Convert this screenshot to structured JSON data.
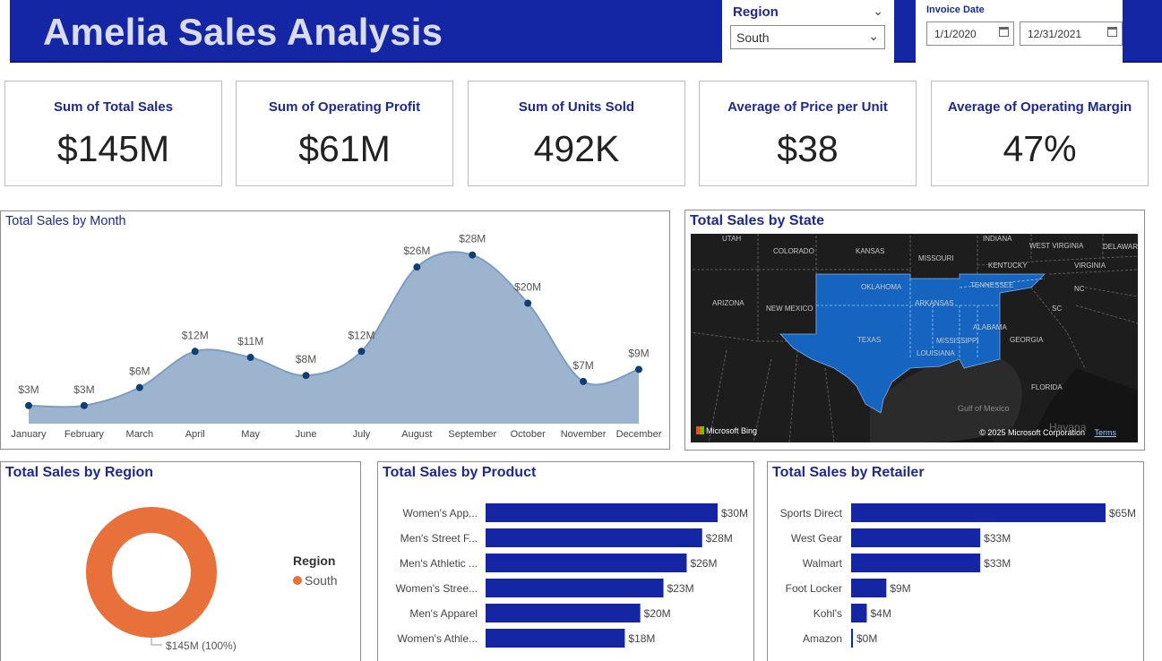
{
  "header": {
    "title": "Amelia Sales Analysis",
    "region_slicer": {
      "label": "Region",
      "value": "South"
    },
    "date_slicer": {
      "label": "Invoice Date",
      "start": "1/1/2020",
      "end": "12/31/2021"
    }
  },
  "kpis": [
    {
      "label": "Sum of Total Sales",
      "value": "$145M"
    },
    {
      "label": "Sum of Operating Profit",
      "value": "$61M"
    },
    {
      "label": "Sum of Units Sold",
      "value": "492K"
    },
    {
      "label": "Average of Price per Unit",
      "value": "$38"
    },
    {
      "label": "Average of Operating Margin",
      "value": "47%"
    }
  ],
  "colors": {
    "header_bg": "#1526a4",
    "title_text": "#d9dcef",
    "accent_text": "#1e2a8a",
    "area_fill": "#9db4cf",
    "area_line": "#7b9cc3",
    "point": "#0f3f74",
    "bar": "#1526a4",
    "donut": "#e8703a",
    "map_bg": "#1a1a1a",
    "map_highlight": "#1565c0"
  },
  "map": {
    "title": "Total Sales by State",
    "labels": [
      "UTAH",
      "COLORADO",
      "KANSAS",
      "MISSOURI",
      "INDIANA",
      "WEST VIRGINIA",
      "DELAWARE",
      "KENTUCKY",
      "VIRGINIA",
      "ARIZONA",
      "NEW MEXICO",
      "OKLAHOMA",
      "ARKANSAS",
      "TENNESSEE",
      "NC",
      "SC",
      "TEXAS",
      "MISSISSIPPI",
      "ALABAMA",
      "GEORGIA",
      "LOUISIANA",
      "FLORIDA",
      "Gulf of Mexico",
      "Havana"
    ],
    "attribution": "Microsoft Bing",
    "copyright": "© 2025 Microsoft Corporation",
    "terms": "Terms"
  },
  "chart_data": [
    {
      "type": "area",
      "title": "Total Sales by Month",
      "categories": [
        "January",
        "February",
        "March",
        "April",
        "May",
        "June",
        "July",
        "August",
        "September",
        "October",
        "November",
        "December"
      ],
      "values": [
        3,
        3,
        6,
        12,
        11,
        8,
        12,
        26,
        28,
        20,
        7,
        9
      ],
      "data_labels": [
        "$3M",
        "$3M",
        "$6M",
        "$12M",
        "$11M",
        "$8M",
        "$12M",
        "$26M",
        "$28M",
        "$20M",
        "$7M",
        "$9M"
      ],
      "unit": "$M",
      "grid": false
    },
    {
      "type": "pie",
      "title": "Total Sales by Region",
      "legend_title": "Region",
      "legend_position": "right",
      "categories": [
        "South"
      ],
      "values": [
        145
      ],
      "data_labels": [
        "$145M (100%)"
      ]
    },
    {
      "type": "bar",
      "title": "Total Sales by Product",
      "orientation": "horizontal",
      "categories": [
        "Women's App...",
        "Men's Street F...",
        "Men's Athletic ...",
        "Women's Stree...",
        "Men's Apparel",
        "Women's Athle..."
      ],
      "values": [
        30,
        28,
        26,
        23,
        20,
        18
      ],
      "data_labels": [
        "$30M",
        "$28M",
        "$26M",
        "$23M",
        "$20M",
        "$18M"
      ],
      "xlim": [
        0,
        30
      ]
    },
    {
      "type": "bar",
      "title": "Total Sales by Retailer",
      "orientation": "horizontal",
      "categories": [
        "Sports Direct",
        "West Gear",
        "Walmart",
        "Foot Locker",
        "Kohl's",
        "Amazon"
      ],
      "values": [
        65,
        33,
        33,
        9,
        4,
        0.4
      ],
      "data_labels": [
        "$65M",
        "$33M",
        "$33M",
        "$9M",
        "$4M",
        "$0M"
      ],
      "xlim": [
        0,
        65
      ]
    }
  ]
}
